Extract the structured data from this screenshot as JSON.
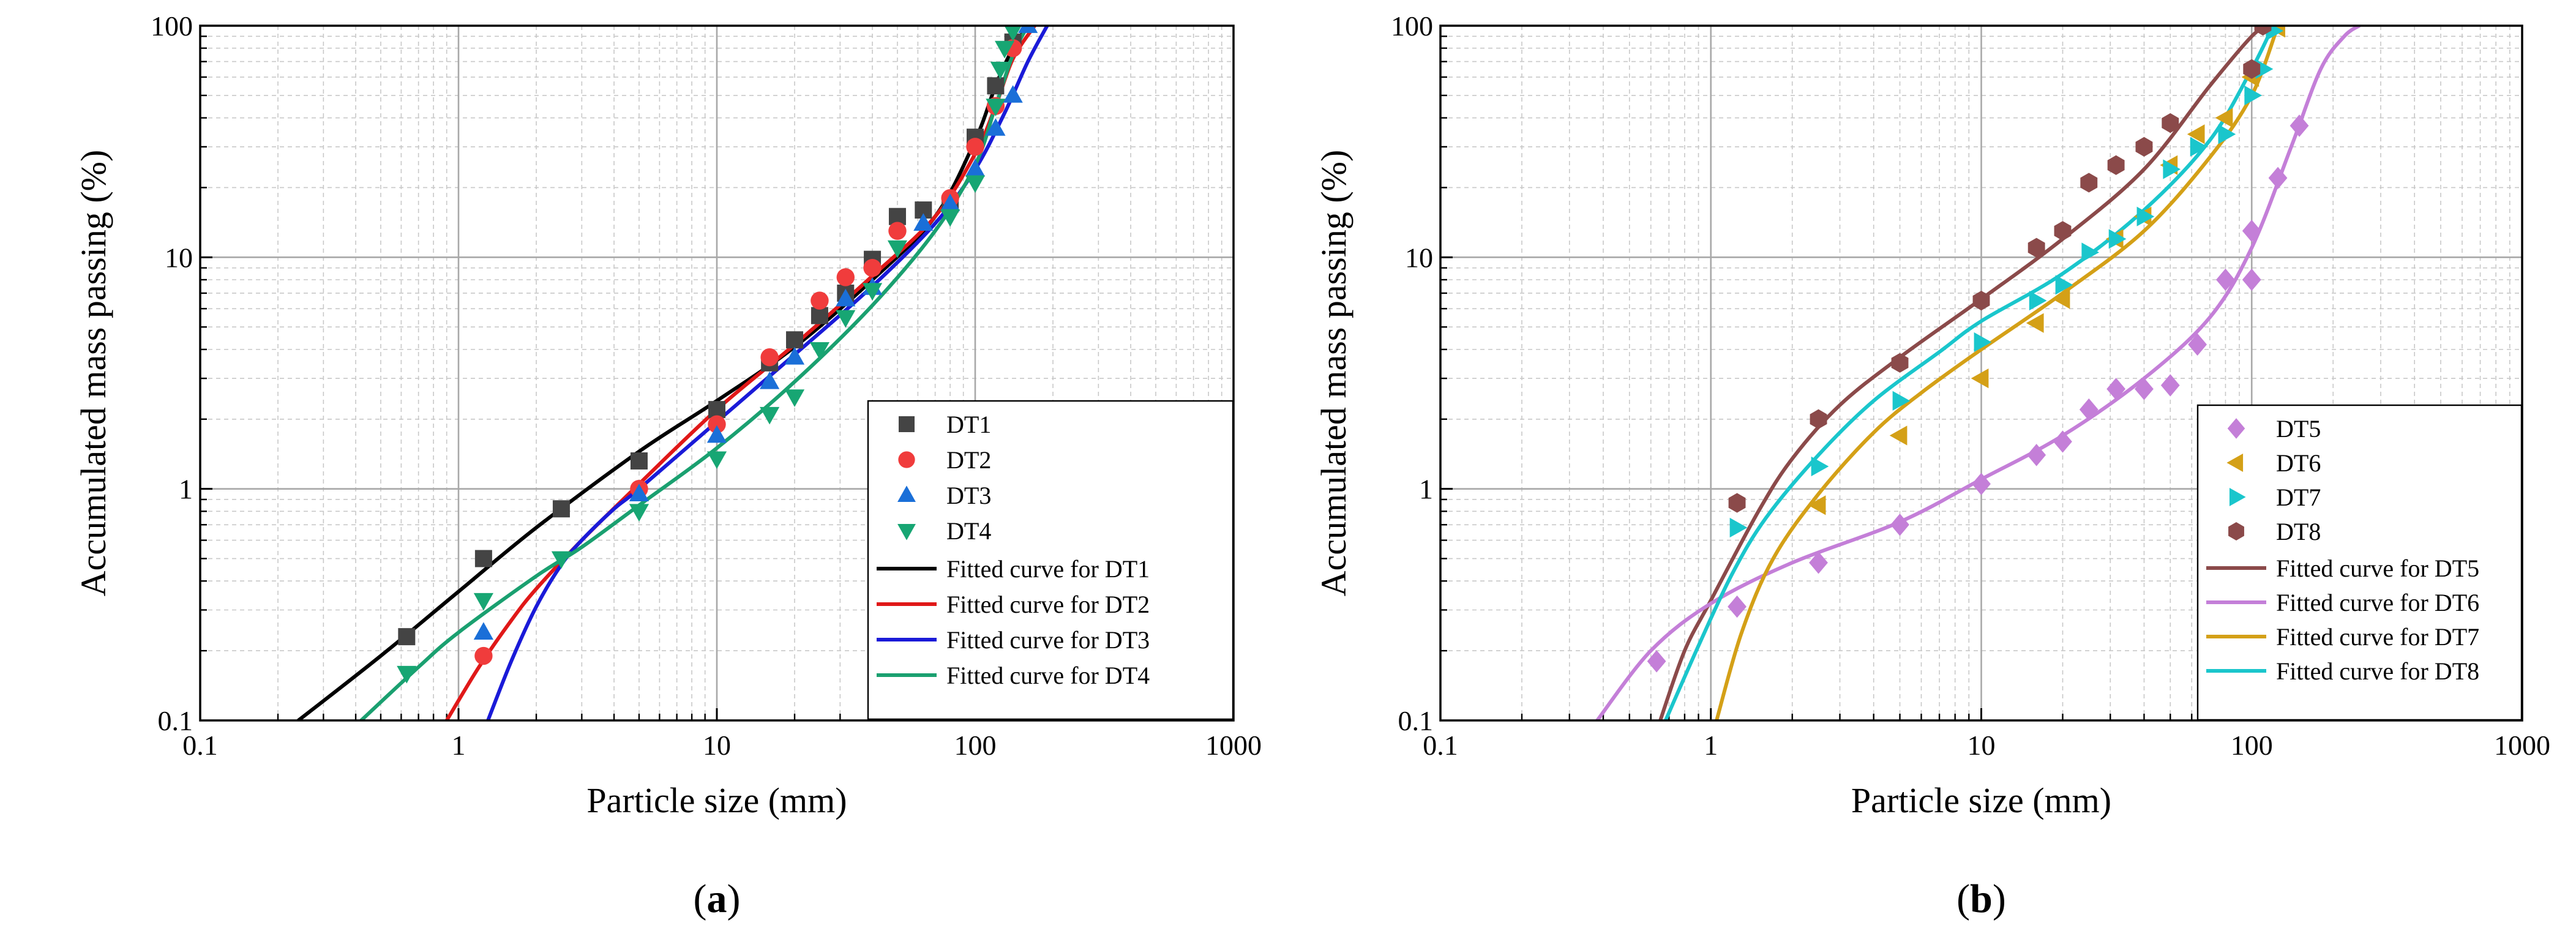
{
  "chart_data": [
    {
      "type": "scatter",
      "panel_label": "(a)",
      "xlabel": "Particle size (mm)",
      "ylabel": "Accumulated mass passing (%)",
      "x_scale": "log",
      "y_scale": "log",
      "xlim": [
        0.1,
        1000
      ],
      "ylim": [
        0.1,
        100
      ],
      "x_ticks": [
        "0.1",
        "1",
        "10",
        "100",
        "1000"
      ],
      "y_ticks": [
        "0.1",
        "1",
        "10",
        "100"
      ],
      "grid": true,
      "legend_position": "bottom-right",
      "series": [
        {
          "name": "DT1",
          "marker": "square",
          "color": "#444444",
          "x": [
            0.63,
            1.25,
            2.5,
            5,
            10,
            16,
            20,
            25,
            31.5,
            40,
            50,
            63,
            80,
            100,
            120,
            140
          ],
          "y": [
            0.23,
            0.5,
            0.82,
            1.32,
            2.2,
            3.5,
            4.4,
            5.6,
            7.0,
            9.8,
            15,
            16,
            17,
            33,
            55,
            85
          ]
        },
        {
          "name": "DT2",
          "marker": "circle",
          "color": "#f03c3c",
          "x": [
            1.25,
            5,
            10,
            16,
            25,
            31.5,
            40,
            50,
            80,
            100,
            120,
            140
          ],
          "y": [
            0.19,
            1.0,
            1.9,
            3.7,
            6.5,
            8.2,
            9.0,
            13,
            18,
            30,
            45,
            80
          ]
        },
        {
          "name": "DT3",
          "marker": "triangle-up",
          "color": "#1a6fd8",
          "x": [
            1.25,
            5,
            10,
            16,
            20,
            31.5,
            40,
            63,
            80,
            100,
            120,
            140,
            160
          ],
          "y": [
            0.24,
            0.95,
            1.7,
            2.9,
            3.7,
            6.6,
            7.4,
            14,
            17,
            24,
            36,
            50,
            100
          ]
        },
        {
          "name": "DT4",
          "marker": "triangle-down",
          "color": "#17a673",
          "x": [
            0.63,
            1.25,
            2.5,
            5,
            10,
            16,
            20,
            25,
            31.5,
            40,
            50,
            80,
            100,
            120,
            125,
            130,
            140
          ],
          "y": [
            0.16,
            0.33,
            0.5,
            0.8,
            1.35,
            2.1,
            2.5,
            4.0,
            5.5,
            7.2,
            11,
            15,
            21,
            45,
            65,
            80,
            95
          ]
        },
        {
          "name": "Fitted curve for DT1",
          "type": "line",
          "color": "#000000",
          "x": [
            0.24,
            0.5,
            1,
            2,
            5,
            10,
            20,
            40,
            70,
            100,
            120,
            140,
            160
          ],
          "y": [
            0.1,
            0.19,
            0.36,
            0.68,
            1.45,
            2.4,
            4.1,
            8.0,
            15,
            32,
            55,
            80,
            100
          ]
        },
        {
          "name": "Fitted curve for DT2",
          "type": "line",
          "color": "#e01818",
          "x": [
            0.9,
            1.2,
            1.6,
            2,
            3,
            5,
            10,
            20,
            40,
            70,
            100,
            120,
            140,
            170
          ],
          "y": [
            0.1,
            0.17,
            0.27,
            0.37,
            0.6,
            1.05,
            2.2,
            4.2,
            8.3,
            15,
            28,
            45,
            72,
            100
          ]
        },
        {
          "name": "Fitted curve for DT3",
          "type": "line",
          "color": "#1a1ad8",
          "x": [
            1.3,
            1.6,
            2,
            2.5,
            3,
            4,
            5,
            10,
            20,
            40,
            70,
            100,
            130,
            160,
            190
          ],
          "y": [
            0.1,
            0.18,
            0.31,
            0.47,
            0.6,
            0.82,
            1.0,
            1.95,
            3.8,
            7.5,
            14,
            24,
            42,
            70,
            100
          ]
        },
        {
          "name": "Fitted curve for DT4",
          "type": "line",
          "color": "#1aa070",
          "x": [
            0.42,
            0.7,
            1,
            2,
            3,
            5,
            10,
            20,
            40,
            70,
            100,
            120,
            140,
            160
          ],
          "y": [
            0.1,
            0.17,
            0.24,
            0.42,
            0.56,
            0.85,
            1.5,
            2.9,
            6.2,
            13,
            25,
            45,
            75,
            100
          ]
        }
      ]
    },
    {
      "type": "scatter",
      "panel_label": "(b)",
      "xlabel": "Particle size (mm)",
      "ylabel": "Accumulated mass passing (%)",
      "x_scale": "log",
      "y_scale": "log",
      "xlim": [
        0.1,
        1000
      ],
      "ylim": [
        0.1,
        100
      ],
      "x_ticks": [
        "0.1",
        "1",
        "10",
        "100",
        "1000"
      ],
      "y_ticks": [
        "0.1",
        "1",
        "10",
        "100"
      ],
      "grid": true,
      "legend_position": "bottom-right",
      "series": [
        {
          "name": "DT5",
          "marker": "diamond",
          "color": "#c47fd8",
          "x": [
            0.63,
            1.25,
            2.5,
            5,
            10,
            16,
            20,
            25,
            31.5,
            40,
            50,
            63,
            80,
            100,
            100,
            125,
            150
          ],
          "y": [
            0.18,
            0.31,
            0.48,
            0.7,
            1.05,
            1.4,
            1.6,
            2.2,
            2.7,
            2.7,
            2.8,
            4.2,
            8.0,
            8.0,
            13,
            22,
            37
          ]
        },
        {
          "name": "DT6",
          "marker": "triangle-left",
          "color": "#d4a017",
          "x": [
            2.5,
            5,
            10,
            16,
            20,
            31.5,
            40,
            50,
            63,
            80,
            100,
            125
          ],
          "y": [
            0.85,
            1.7,
            3.0,
            5.2,
            6.6,
            12,
            15,
            25,
            34,
            40,
            60,
            98
          ]
        },
        {
          "name": "DT7",
          "marker": "triangle-right",
          "color": "#1ac6cc",
          "x": [
            1.25,
            2.5,
            5,
            10,
            16,
            20,
            25,
            31.5,
            40,
            50,
            63,
            80,
            100,
            110,
            120
          ],
          "y": [
            0.68,
            1.25,
            2.4,
            4.3,
            6.5,
            7.6,
            10.5,
            12,
            15,
            24,
            30,
            34,
            50,
            65,
            95
          ]
        },
        {
          "name": "DT8",
          "marker": "hexagon",
          "color": "#8b4a4a",
          "x": [
            1.25,
            2.5,
            5,
            10,
            16,
            20,
            25,
            31.5,
            40,
            50,
            100,
            110
          ],
          "y": [
            0.87,
            2.0,
            3.5,
            6.5,
            11,
            13,
            21,
            25,
            30,
            38,
            65,
            100
          ]
        },
        {
          "name": "Fitted curve for DT5",
          "type": "line",
          "color": "#8b4a4a",
          "x": [
            0.65,
            0.8,
            1,
            1.5,
            2,
            3,
            5,
            10,
            20,
            40,
            70,
            100,
            115
          ],
          "y": [
            0.1,
            0.2,
            0.33,
            0.8,
            1.35,
            2.3,
            3.7,
            6.6,
            12,
            24,
            55,
            90,
            100
          ]
        },
        {
          "name": "Fitted curve for DT6",
          "type": "line",
          "color": "#c47fd8",
          "x": [
            0.38,
            0.6,
            1,
            2,
            5,
            10,
            20,
            40,
            70,
            100,
            140,
            180,
            220,
            250
          ],
          "y": [
            0.1,
            0.2,
            0.32,
            0.48,
            0.72,
            1.1,
            1.7,
            3.0,
            5.5,
            11,
            30,
            65,
            90,
            100
          ]
        },
        {
          "name": "Fitted curve for DT7",
          "type": "line",
          "color": "#d4a017",
          "x": [
            1.05,
            1.3,
            1.7,
            2.5,
            4,
            6,
            10,
            20,
            40,
            70,
            100,
            125
          ],
          "y": [
            0.1,
            0.24,
            0.5,
            0.95,
            1.75,
            2.6,
            4.0,
            7.0,
            13,
            27,
            50,
            100
          ]
        },
        {
          "name": "Fitted curve for DT8",
          "type": "line",
          "color": "#1ac6cc",
          "x": [
            0.68,
            0.9,
            1.2,
            1.6,
            2.5,
            4,
            7,
            10,
            20,
            40,
            70,
            100,
            120
          ],
          "y": [
            0.1,
            0.21,
            0.43,
            0.75,
            1.4,
            2.4,
            3.9,
            5.3,
            8.5,
            16,
            32,
            65,
            100
          ]
        }
      ]
    }
  ]
}
